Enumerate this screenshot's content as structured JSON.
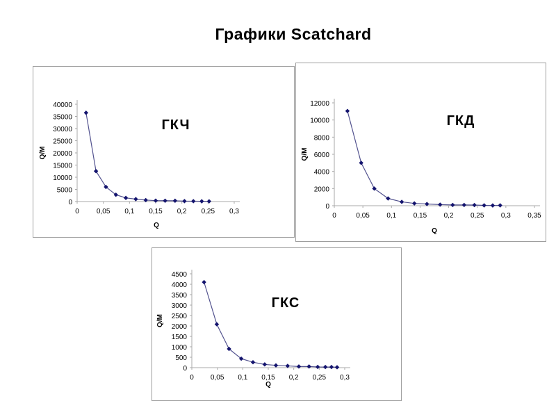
{
  "slide": {
    "title": "Графики Scatchard"
  },
  "colors": {
    "marker": "#14146e",
    "line": "#53538f",
    "axis": "#a9a9a9",
    "text": "#000000",
    "box_border": "#9e9e9e",
    "background": "#ffffff"
  },
  "chart_data": [
    {
      "type": "scatter",
      "title": "ГКЧ",
      "xlabel": "Q",
      "ylabel": "Q/M",
      "xlim": [
        0,
        0.3
      ],
      "ylim": [
        0,
        40000
      ],
      "grid": false,
      "legend": "none",
      "xticks": [
        0,
        0.05,
        0.1,
        0.15,
        0.2,
        0.25,
        0.3
      ],
      "xtick_labels": [
        "0",
        "0,05",
        "0,1",
        "0,15",
        "0,2",
        "0,25",
        "0,3"
      ],
      "yticks": [
        0,
        5000,
        10000,
        15000,
        20000,
        25000,
        30000,
        35000,
        40000
      ],
      "x": [
        0.017,
        0.036,
        0.055,
        0.074,
        0.093,
        0.112,
        0.131,
        0.15,
        0.168,
        0.187,
        0.205,
        0.222,
        0.238,
        0.252
      ],
      "y": [
        36500,
        12500,
        6000,
        2800,
        1500,
        1000,
        600,
        380,
        350,
        330,
        180,
        160,
        110,
        100
      ]
    },
    {
      "type": "scatter",
      "title": "ГКД",
      "xlabel": "Q",
      "ylabel": "Q/M",
      "xlim": [
        0,
        0.35
      ],
      "ylim": [
        0,
        12000
      ],
      "grid": false,
      "legend": "none",
      "xticks": [
        0,
        0.05,
        0.1,
        0.15,
        0.2,
        0.25,
        0.3,
        0.35
      ],
      "xtick_labels": [
        "0",
        "0,05",
        "0,1",
        "0,15",
        "0,2",
        "0,25",
        "0,3",
        "0,35"
      ],
      "yticks": [
        0,
        2000,
        4000,
        6000,
        8000,
        10000,
        12000
      ],
      "x": [
        0.023,
        0.047,
        0.07,
        0.094,
        0.118,
        0.14,
        0.162,
        0.185,
        0.207,
        0.227,
        0.245,
        0.262,
        0.277,
        0.29
      ],
      "y": [
        11050,
        5000,
        2000,
        850,
        450,
        270,
        200,
        130,
        90,
        90,
        80,
        40,
        30,
        40
      ]
    },
    {
      "type": "scatter",
      "title": "ГКС",
      "xlabel": "Q",
      "ylabel": "Q/M",
      "xlim": [
        0,
        0.3
      ],
      "ylim": [
        0,
        4500
      ],
      "grid": false,
      "legend": "none",
      "xticks": [
        0,
        0.05,
        0.1,
        0.15,
        0.2,
        0.25,
        0.3
      ],
      "xtick_labels": [
        "0",
        "0,05",
        "0,1",
        "0,15",
        "0,2",
        "0,25",
        "0,3"
      ],
      "yticks": [
        0,
        500,
        1000,
        1500,
        2000,
        2500,
        3000,
        3500,
        4000,
        4500
      ],
      "x": [
        0.024,
        0.049,
        0.073,
        0.097,
        0.12,
        0.143,
        0.165,
        0.188,
        0.21,
        0.23,
        0.247,
        0.262,
        0.274,
        0.285
      ],
      "y": [
        4100,
        2080,
        900,
        430,
        260,
        155,
        110,
        85,
        55,
        55,
        35,
        30,
        30,
        20
      ]
    }
  ]
}
